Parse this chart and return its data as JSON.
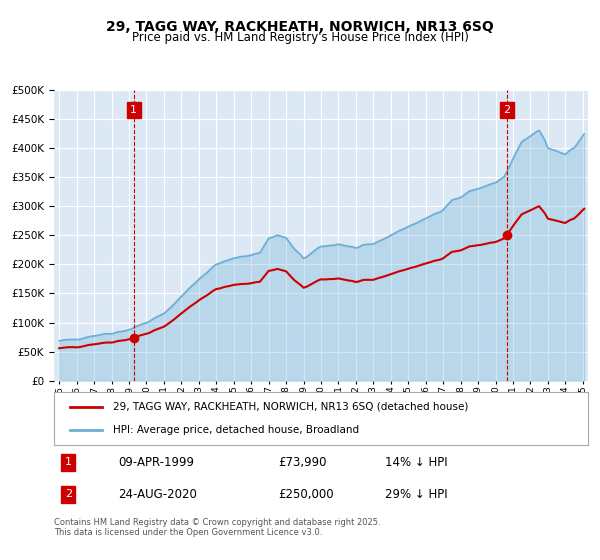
{
  "title": "29, TAGG WAY, RACKHEATH, NORWICH, NR13 6SQ",
  "subtitle": "Price paid vs. HM Land Registry's House Price Index (HPI)",
  "legend_line1": "29, TAGG WAY, RACKHEATH, NORWICH, NR13 6SQ (detached house)",
  "legend_line2": "HPI: Average price, detached house, Broadland",
  "annotation1_label": "1",
  "annotation1_date": "09-APR-1999",
  "annotation1_price": "£73,990",
  "annotation1_hpi": "14% ↓ HPI",
  "annotation2_label": "2",
  "annotation2_date": "24-AUG-2020",
  "annotation2_price": "£250,000",
  "annotation2_hpi": "29% ↓ HPI",
  "footnote": "Contains HM Land Registry data © Crown copyright and database right 2025.\nThis data is licensed under the Open Government Licence v3.0.",
  "hpi_color": "#6baed6",
  "property_color": "#cc0000",
  "marker_color": "#cc0000",
  "vline_color": "#cc0000",
  "bg_color": "#dce9f5",
  "plot_bg": "#dce9f5",
  "grid_color": "#ffffff",
  "annotation_box_color": "#cc0000",
  "ylim": [
    0,
    500000
  ],
  "yticks": [
    0,
    50000,
    100000,
    150000,
    200000,
    250000,
    300000,
    350000,
    400000,
    450000,
    500000
  ],
  "year_start": 1995,
  "year_end": 2025,
  "sale1_year": 1999.27,
  "sale1_price": 73990,
  "sale2_year": 2020.64,
  "sale2_price": 250000
}
